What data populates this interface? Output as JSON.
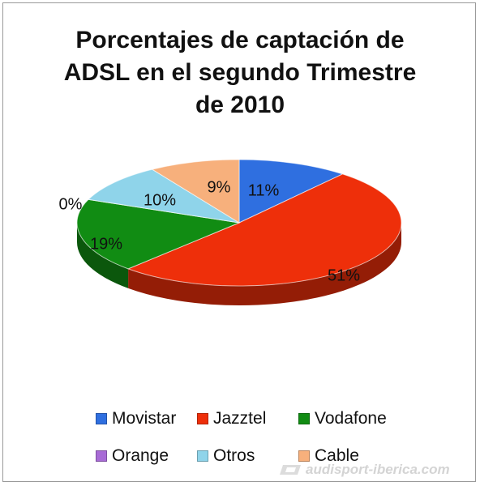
{
  "chart_data": {
    "type": "pie",
    "title_lines": [
      "Porcentajes de captación de",
      "ADSL en el segundo Trimestre",
      "de 2010"
    ],
    "slices": [
      {
        "label": "Movistar",
        "value": 11,
        "value_label": "11%",
        "color": "#2f6fe0"
      },
      {
        "label": "Jazztel",
        "value": 51,
        "value_label": "51%",
        "color": "#ee2f0a"
      },
      {
        "label": "Vodafone",
        "value": 19,
        "value_label": "19%",
        "color": "#118c13"
      },
      {
        "label": "Orange",
        "value": 0,
        "value_label": "0%",
        "color": "#a86bd6"
      },
      {
        "label": "Otros",
        "value": 10,
        "value_label": "10%",
        "color": "#8fd4ea"
      },
      {
        "label": "Cable",
        "value": 9,
        "value_label": "9%",
        "color": "#f7b07c"
      }
    ],
    "legend_placement": "bottom"
  },
  "watermark": {
    "text": "audisport-iberica.com"
  }
}
